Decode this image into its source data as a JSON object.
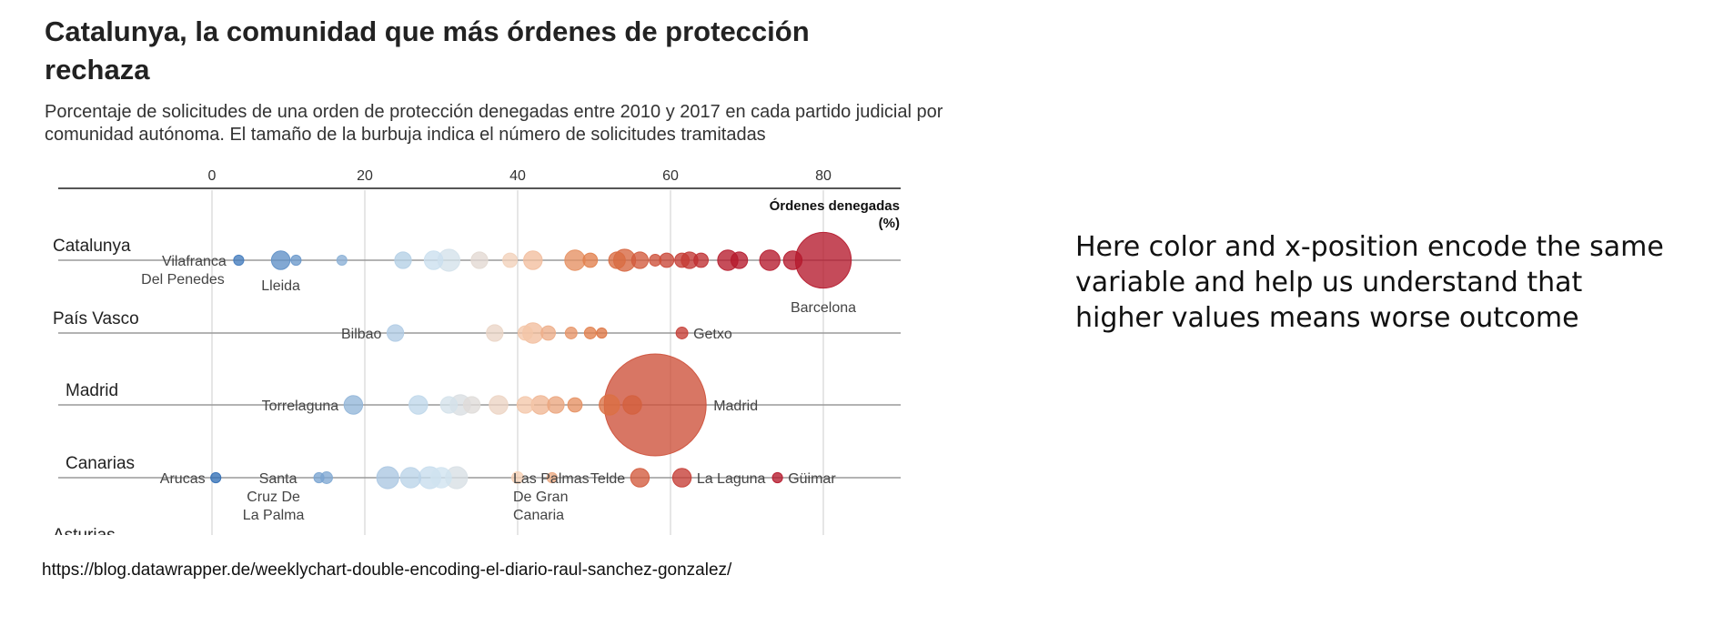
{
  "title": "Catalunya, la comunidad que más órdenes de protección rechaza",
  "subtitle": "Porcentaje de solicitudes de una orden de protección denegadas entre 2010 y 2017 en cada partido judicial por comunidad autónoma. El tamaño de la burbuja indica el número de solicitudes tramitadas",
  "source_url": "https://blog.datawrapper.de/weeklychart-double-encoding-el-diario-raul-sanchez-gonzalez/",
  "side_note": "Here color and x-position encode the same variable and help us understand that higher values means worse outcome",
  "colors": {
    "low": "#2f6db5",
    "mid_low": "#cfe3f0",
    "mid_high": "#f6cfb4",
    "orange": "#e07b45",
    "high": "#b5182b"
  },
  "chart_data": {
    "type": "scatter",
    "title": "Catalunya, la comunidad que más órdenes de protección rechaza",
    "x_axis_label": "Órdenes denegadas (%)",
    "x_ticks": [
      0,
      20,
      40,
      60,
      80
    ],
    "xlim": [
      -20,
      90
    ],
    "grid": "vertical",
    "rows": [
      {
        "name": "Catalunya",
        "points": [
          {
            "x": 3.5,
            "size": 3
          },
          {
            "x": 9,
            "size": 10
          },
          {
            "x": 11,
            "size": 3
          },
          {
            "x": 17,
            "size": 2
          },
          {
            "x": 25,
            "size": 8
          },
          {
            "x": 29,
            "size": 10
          },
          {
            "x": 31,
            "size": 14
          },
          {
            "x": 35,
            "size": 8
          },
          {
            "x": 39,
            "size": 6
          },
          {
            "x": 42,
            "size": 10
          },
          {
            "x": 47.5,
            "size": 12
          },
          {
            "x": 49.5,
            "size": 6
          },
          {
            "x": 53,
            "size": 8
          },
          {
            "x": 54,
            "size": 14
          },
          {
            "x": 56,
            "size": 8
          },
          {
            "x": 58,
            "size": 4
          },
          {
            "x": 59.5,
            "size": 6
          },
          {
            "x": 61.5,
            "size": 6
          },
          {
            "x": 62.5,
            "size": 8
          },
          {
            "x": 64,
            "size": 6
          },
          {
            "x": 67.5,
            "size": 12
          },
          {
            "x": 69,
            "size": 8
          },
          {
            "x": 73,
            "size": 12
          },
          {
            "x": 76,
            "size": 10
          },
          {
            "x": 80,
            "size": 90
          }
        ],
        "labels": [
          {
            "text": "Vilafranca Del Penedes",
            "x": 3.5
          },
          {
            "text": "Lleida",
            "x": 9
          },
          {
            "text": "Barcelona",
            "x": 80
          }
        ]
      },
      {
        "name": "País Vasco",
        "points": [
          {
            "x": 24,
            "size": 8
          },
          {
            "x": 37,
            "size": 8
          },
          {
            "x": 41,
            "size": 6
          },
          {
            "x": 42,
            "size": 12
          },
          {
            "x": 44,
            "size": 6
          },
          {
            "x": 47,
            "size": 4
          },
          {
            "x": 49.5,
            "size": 4
          },
          {
            "x": 51,
            "size": 3
          },
          {
            "x": 61.5,
            "size": 4
          }
        ],
        "labels": [
          {
            "text": "Bilbao",
            "x": 24
          },
          {
            "text": "Getxo",
            "x": 61.5
          }
        ]
      },
      {
        "name": "Madrid",
        "points": [
          {
            "x": 18.5,
            "size": 10
          },
          {
            "x": 27,
            "size": 10
          },
          {
            "x": 31,
            "size": 8
          },
          {
            "x": 32.5,
            "size": 12
          },
          {
            "x": 34,
            "size": 8
          },
          {
            "x": 37.5,
            "size": 10
          },
          {
            "x": 41,
            "size": 8
          },
          {
            "x": 43,
            "size": 10
          },
          {
            "x": 45,
            "size": 8
          },
          {
            "x": 47.5,
            "size": 6
          },
          {
            "x": 52,
            "size": 12
          },
          {
            "x": 55,
            "size": 10
          },
          {
            "x": 58,
            "size": 300
          }
        ],
        "labels": [
          {
            "text": "Torrelaguna",
            "x": 18.5
          },
          {
            "text": "Madrid",
            "x": 58
          }
        ]
      },
      {
        "name": "Canarias",
        "points": [
          {
            "x": 0.5,
            "size": 3
          },
          {
            "x": 14,
            "size": 3
          },
          {
            "x": 15,
            "size": 4
          },
          {
            "x": 23,
            "size": 14
          },
          {
            "x": 26,
            "size": 12
          },
          {
            "x": 28.5,
            "size": 14
          },
          {
            "x": 30,
            "size": 12
          },
          {
            "x": 32,
            "size": 14
          },
          {
            "x": 40,
            "size": 4
          },
          {
            "x": 44.5,
            "size": 3
          },
          {
            "x": 56,
            "size": 10
          },
          {
            "x": 61.5,
            "size": 10
          },
          {
            "x": 74,
            "size": 3
          }
        ],
        "labels": [
          {
            "text": "Arucas",
            "x": 0.5
          },
          {
            "text": "Santa Cruz De La Palma",
            "x": 14
          },
          {
            "text": "Las Palmas De Gran Canaria",
            "x": 40
          },
          {
            "text": "Telde",
            "x": 56
          },
          {
            "text": "La Laguna",
            "x": 61.5
          },
          {
            "text": "Güimar",
            "x": 74
          }
        ]
      },
      {
        "name": "Asturias",
        "points": [],
        "labels": []
      }
    ]
  }
}
